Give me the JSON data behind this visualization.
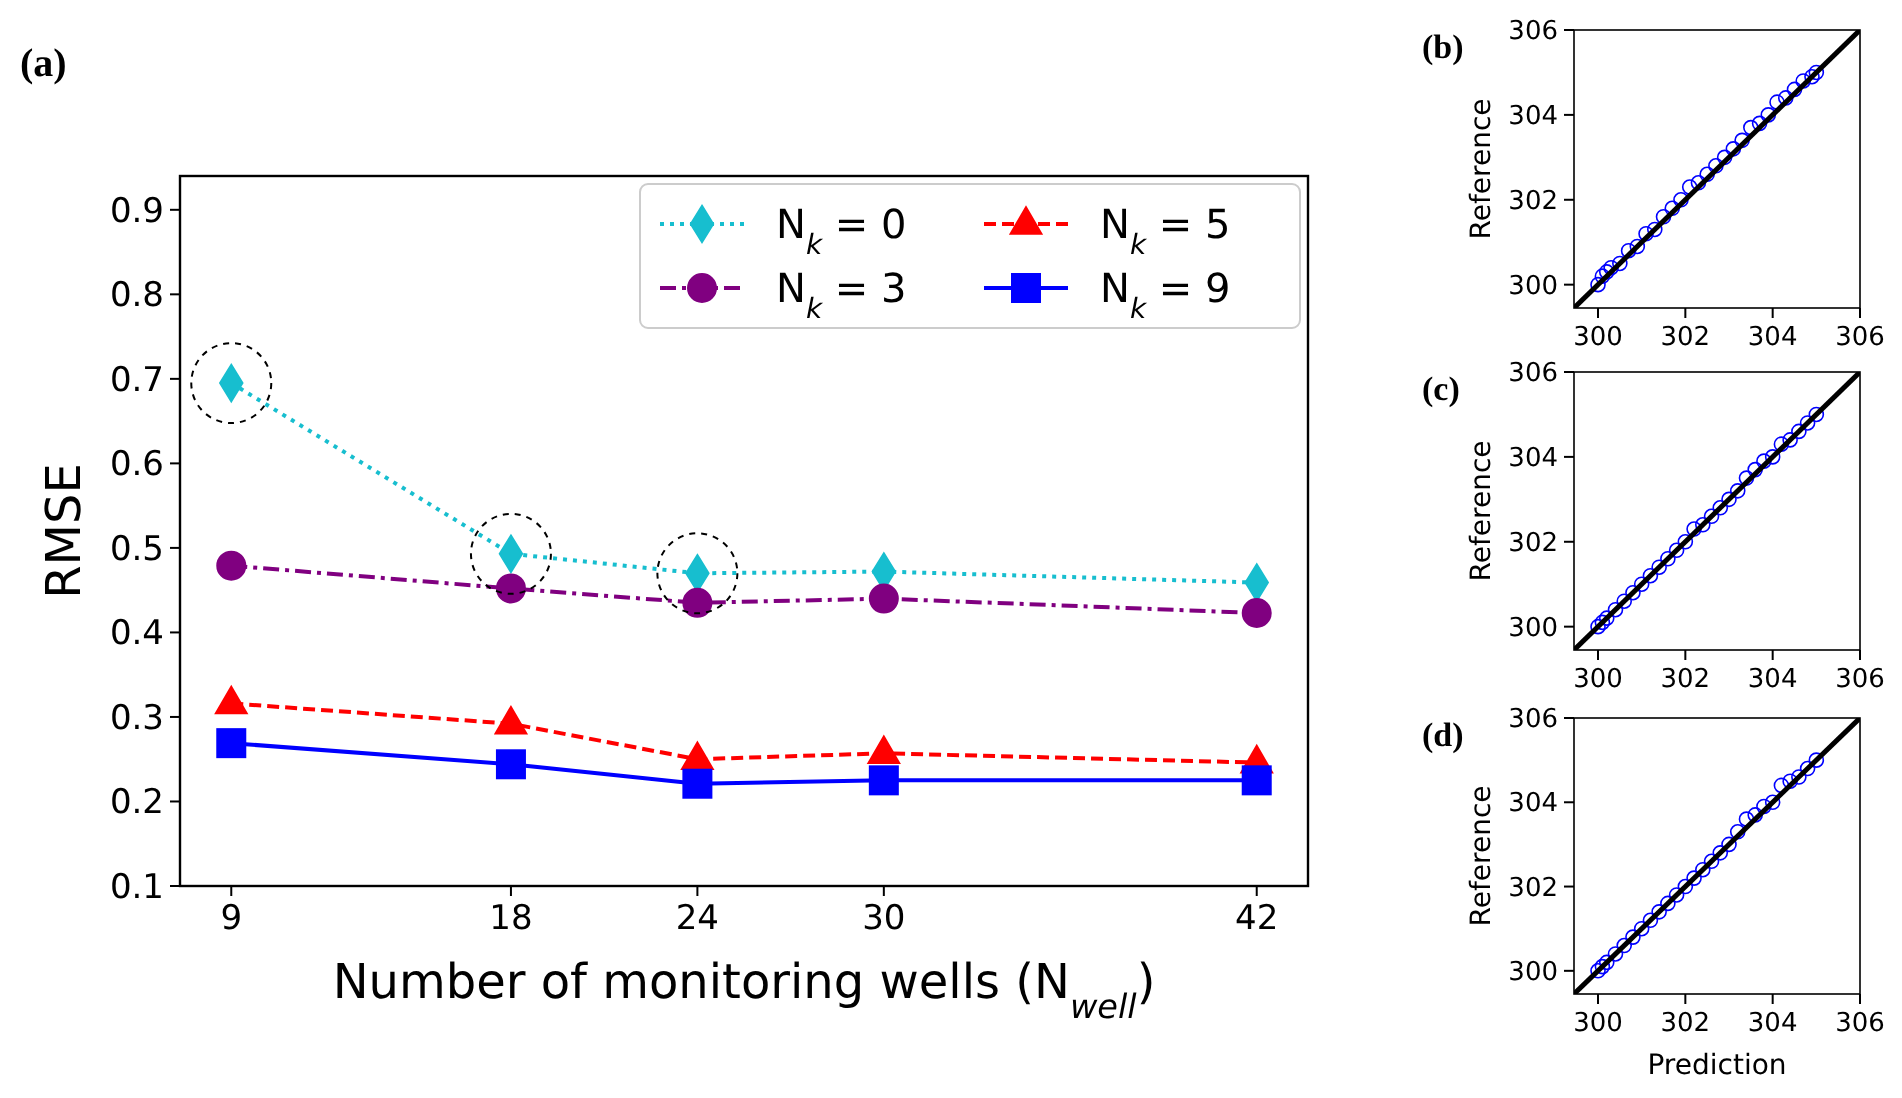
{
  "chart_data": [
    {
      "type": "line",
      "title": "(a)",
      "xlabel": "Number of monitoring wells (N$_{well}$)",
      "ylabel": "RMSE",
      "x": [
        9,
        18,
        24,
        30,
        42
      ],
      "xlim": [
        7.35,
        43.65
      ],
      "xticks": [
        9,
        18,
        24,
        30,
        42
      ],
      "ylim": [
        0.1,
        0.94
      ],
      "yticks": [
        0.1,
        0.2,
        0.3,
        0.4,
        0.5,
        0.6,
        0.7,
        0.8,
        0.9
      ],
      "legend": "top right",
      "grid": false,
      "series": [
        {
          "name": "N$_{k}$ = 0",
          "color": "#17becf",
          "marker": "diamond",
          "line_style": "dotted",
          "values": [
            0.695,
            0.493,
            0.47,
            0.472,
            0.459
          ]
        },
        {
          "name": "N$_{k}$ = 3",
          "color": "#800080",
          "marker": "circle",
          "line_style": "dashdot",
          "values": [
            0.479,
            0.452,
            0.435,
            0.44,
            0.423
          ]
        },
        {
          "name": "N$_{k}$ = 5",
          "color": "#ff0000",
          "marker": "triangle",
          "line_style": "dashed",
          "values": [
            0.316,
            0.292,
            0.25,
            0.257,
            0.246
          ]
        },
        {
          "name": "N$_{k}$ = 9",
          "color": "#0000ff",
          "marker": "square",
          "line_style": "solid",
          "values": [
            0.269,
            0.244,
            0.221,
            0.225,
            0.225
          ]
        }
      ]
    },
    {
      "type": "scatter",
      "title": "(b)",
      "ylabel": "Reference",
      "xlim": [
        299.45,
        306
      ],
      "ylim": [
        299.45,
        306
      ],
      "xticks": [
        300,
        302,
        304,
        306
      ],
      "yticks": [
        300,
        302,
        304,
        306
      ],
      "grid": false,
      "series": [
        {
          "color": "#0000ff",
          "marker": "circle",
          "x": [
            300.0,
            300.1,
            300.2,
            300.3,
            300.5,
            300.7,
            300.9,
            301.1,
            301.3,
            301.5,
            301.7,
            301.9,
            302.1,
            302.3,
            302.5,
            302.7,
            302.9,
            303.1,
            303.3,
            303.5,
            303.7,
            303.9,
            304.1,
            304.3,
            304.5,
            304.7,
            304.9,
            305.0
          ],
          "values": [
            300.0,
            300.2,
            300.3,
            300.4,
            300.5,
            300.8,
            300.9,
            301.2,
            301.3,
            301.6,
            301.8,
            302.0,
            302.3,
            302.4,
            302.6,
            302.8,
            303.0,
            303.2,
            303.4,
            303.7,
            303.8,
            304.0,
            304.3,
            304.4,
            304.6,
            304.8,
            304.9,
            305.0
          ]
        },
        {
          "type": "line",
          "color": "#000000",
          "marker": "none",
          "line_style": "solid",
          "x": [
            299.45,
            306
          ],
          "values": [
            299.45,
            306
          ]
        }
      ]
    },
    {
      "type": "scatter",
      "title": "(c)",
      "ylabel": "Reference",
      "xlim": [
        299.45,
        306
      ],
      "ylim": [
        299.45,
        306
      ],
      "xticks": [
        300,
        302,
        304,
        306
      ],
      "yticks": [
        300,
        302,
        304,
        306
      ],
      "grid": false,
      "series": [
        {
          "color": "#0000ff",
          "marker": "circle",
          "x": [
            300.0,
            300.1,
            300.2,
            300.4,
            300.6,
            300.8,
            301.0,
            301.2,
            301.4,
            301.6,
            301.8,
            302.0,
            302.2,
            302.4,
            302.6,
            302.8,
            303.0,
            303.2,
            303.4,
            303.6,
            303.8,
            304.0,
            304.2,
            304.4,
            304.6,
            304.8,
            305.0
          ],
          "values": [
            300.0,
            300.1,
            300.2,
            300.4,
            300.6,
            300.8,
            301.0,
            301.2,
            301.4,
            301.6,
            301.8,
            302.0,
            302.3,
            302.4,
            302.6,
            302.8,
            303.0,
            303.2,
            303.5,
            303.7,
            303.9,
            304.0,
            304.3,
            304.4,
            304.6,
            304.8,
            305.0
          ]
        },
        {
          "type": "line",
          "color": "#000000",
          "marker": "none",
          "line_style": "solid",
          "x": [
            299.45,
            306
          ],
          "values": [
            299.45,
            306
          ]
        }
      ]
    },
    {
      "type": "scatter",
      "title": "(d)",
      "xlabel": "Prediction",
      "ylabel": "Reference",
      "xlim": [
        299.45,
        306
      ],
      "ylim": [
        299.45,
        306
      ],
      "xticks": [
        300,
        302,
        304,
        306
      ],
      "yticks": [
        300,
        302,
        304,
        306
      ],
      "grid": false,
      "series": [
        {
          "color": "#0000ff",
          "marker": "circle",
          "x": [
            300.0,
            300.1,
            300.2,
            300.4,
            300.6,
            300.8,
            301.0,
            301.2,
            301.4,
            301.6,
            301.8,
            302.0,
            302.2,
            302.4,
            302.6,
            302.8,
            303.0,
            303.2,
            303.4,
            303.6,
            303.8,
            304.0,
            304.2,
            304.4,
            304.6,
            304.8,
            305.0
          ],
          "values": [
            300.0,
            300.1,
            300.2,
            300.4,
            300.6,
            300.8,
            301.0,
            301.2,
            301.4,
            301.6,
            301.8,
            302.0,
            302.2,
            302.4,
            302.6,
            302.8,
            303.0,
            303.3,
            303.6,
            303.7,
            303.9,
            304.0,
            304.4,
            304.5,
            304.6,
            304.8,
            305.0
          ]
        },
        {
          "type": "line",
          "color": "#000000",
          "marker": "none",
          "line_style": "solid",
          "x": [
            299.45,
            306
          ],
          "values": [
            299.45,
            306
          ]
        }
      ]
    }
  ]
}
